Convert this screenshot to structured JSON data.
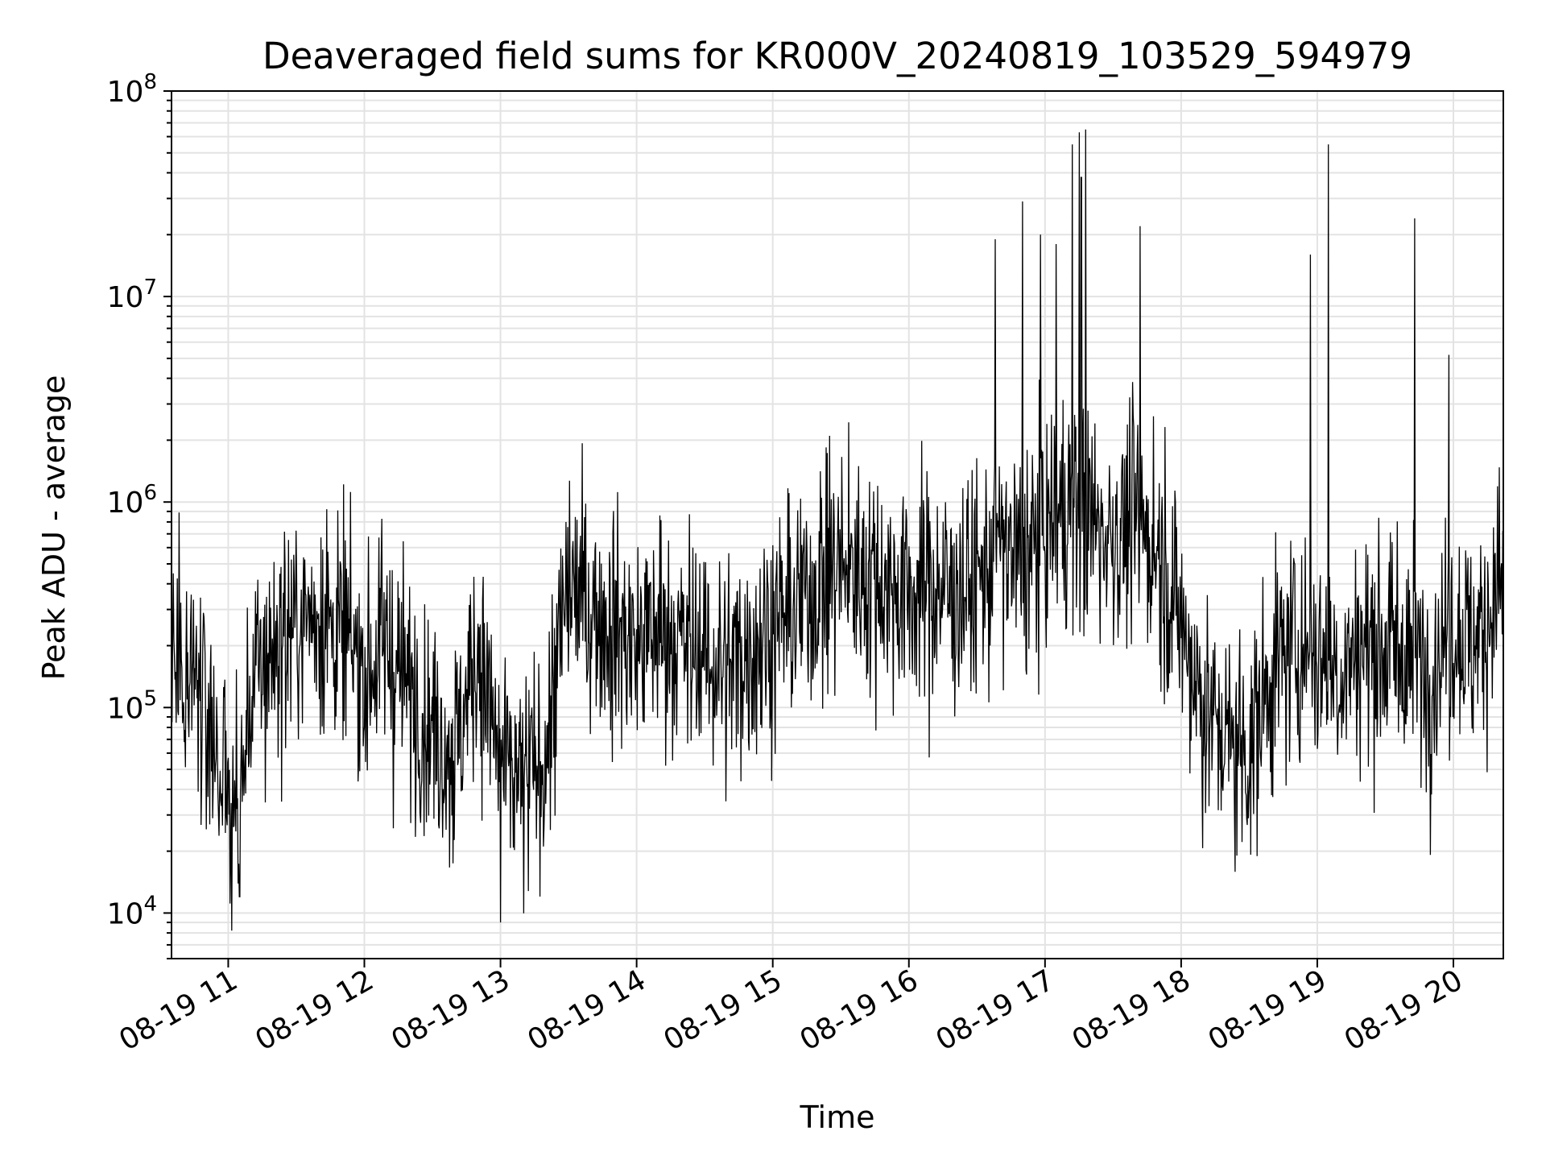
{
  "chart_data": {
    "type": "line",
    "title": "Deaveraged field sums for KR000V_20240819_103529_594979",
    "xlabel": "Time",
    "ylabel": "Peak ADU - average",
    "yscale": "log",
    "ylim": [
      6000,
      100000000
    ],
    "xlim": [
      "08-19 10:35",
      "08-19 20:22"
    ],
    "grid": true,
    "line_color": "#000000",
    "x_ticks": [
      "08-19 11",
      "08-19 12",
      "08-19 13",
      "08-19 14",
      "08-19 15",
      "08-19 16",
      "08-19 17",
      "08-19 18",
      "08-19 19",
      "08-19 20"
    ],
    "y_ticks": [
      {
        "value": 10000,
        "base": "10",
        "exp": "4"
      },
      {
        "value": 100000,
        "base": "10",
        "exp": "5"
      },
      {
        "value": 1000000,
        "base": "10",
        "exp": "6"
      },
      {
        "value": 10000000,
        "base": "10",
        "exp": "7"
      },
      {
        "value": 100000000,
        "base": "10",
        "exp": "8"
      }
    ],
    "series": [
      {
        "x": [
          "08-19 10:35",
          "08-19 10:45",
          "08-19 10:55",
          "08-19 11:00",
          "08-19 11:05",
          "08-19 11:10",
          "08-19 11:20",
          "08-19 11:30",
          "08-19 11:40",
          "08-19 11:50",
          "08-19 12:00",
          "08-19 12:10",
          "08-19 12:20",
          "08-19 12:30",
          "08-19 12:40",
          "08-19 12:50",
          "08-19 13:00",
          "08-19 13:10",
          "08-19 13:20",
          "08-19 13:30",
          "08-19 13:40",
          "08-19 13:50",
          "08-19 14:00",
          "08-19 14:10",
          "08-19 14:20",
          "08-19 14:30",
          "08-19 14:40",
          "08-19 14:50",
          "08-19 15:00",
          "08-19 15:10",
          "08-19 15:20",
          "08-19 15:30",
          "08-19 15:40",
          "08-19 15:50",
          "08-19 16:00",
          "08-19 16:10",
          "08-19 16:20",
          "08-19 16:30",
          "08-19 16:40",
          "08-19 16:50",
          "08-19 17:00",
          "08-19 17:10",
          "08-19 17:20",
          "08-19 17:30",
          "08-19 17:40",
          "08-19 17:50",
          "08-19 18:00",
          "08-19 18:10",
          "08-19 18:20",
          "08-19 18:30",
          "08-19 18:40",
          "08-19 18:50",
          "08-19 19:00",
          "08-19 19:10",
          "08-19 19:20",
          "08-19 19:30",
          "08-19 19:40",
          "08-19 19:50",
          "08-19 20:00",
          "08-19 20:10",
          "08-19 20:20"
        ],
        "values": [
          200000,
          150000,
          60000,
          35000,
          30000,
          120000,
          200000,
          250000,
          300000,
          220000,
          150000,
          200000,
          120000,
          80000,
          60000,
          200000,
          50000,
          40000,
          60000,
          400000,
          300000,
          250000,
          200000,
          250000,
          200000,
          180000,
          150000,
          200000,
          250000,
          300000,
          400000,
          500000,
          450000,
          400000,
          350000,
          400000,
          350000,
          400000,
          600000,
          500000,
          700000,
          1000000,
          800000,
          700000,
          800000,
          600000,
          250000,
          100000,
          70000,
          60000,
          150000,
          200000,
          180000,
          150000,
          200000,
          200000,
          180000,
          150000,
          250000,
          200000,
          400000
        ],
        "noise_sigma_decades": 0.28,
        "peaks": [
          {
            "x": "08-19 16:38",
            "value": 19000000
          },
          {
            "x": "08-19 16:50",
            "value": 29000000
          },
          {
            "x": "08-19 16:58",
            "value": 20000000
          },
          {
            "x": "08-19 17:05",
            "value": 18000000
          },
          {
            "x": "08-19 17:12",
            "value": 55000000
          },
          {
            "x": "08-19 17:15",
            "value": 63000000
          },
          {
            "x": "08-19 17:16",
            "value": 38000000
          },
          {
            "x": "08-19 17:18",
            "value": 65000000
          },
          {
            "x": "08-19 17:42",
            "value": 22000000
          },
          {
            "x": "08-19 18:57",
            "value": 16000000
          },
          {
            "x": "08-19 19:05",
            "value": 55000000
          },
          {
            "x": "08-19 19:43",
            "value": 24000000
          },
          {
            "x": "08-19 19:58",
            "value": 5200000
          },
          {
            "x": "08-19 15:25",
            "value": 2100000
          },
          {
            "x": "08-19 13:00",
            "value": 9000
          },
          {
            "x": "08-19 11:05",
            "value": 12000
          }
        ]
      }
    ]
  }
}
